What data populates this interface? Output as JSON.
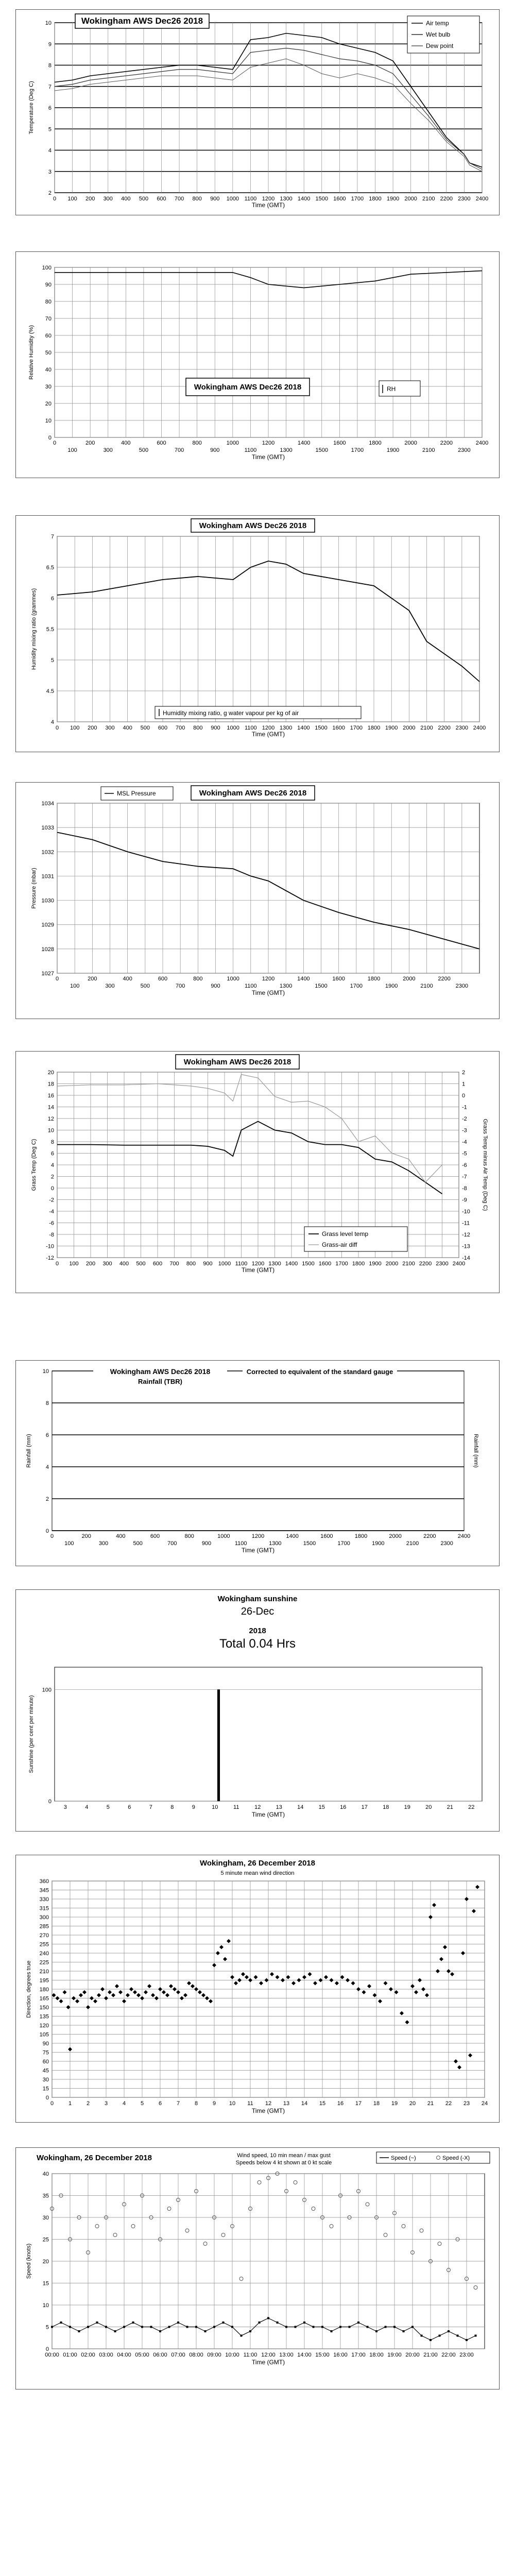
{
  "charts": {
    "temp": {
      "title": "Wokingham AWS  Dec26 2018",
      "xlabel": "Time (GMT)",
      "ylabel": "Temperature (Deg C)",
      "legend": [
        "Air temp",
        "Wet bulb",
        "Dew point"
      ]
    },
    "rh": {
      "title": "Wokingham AWS  Dec26 2018",
      "xlabel": "Time (GMT)",
      "ylabel": "Relative Humidity (%)",
      "legend": [
        "RH"
      ]
    },
    "hmr": {
      "title": "Wokingham AWS  Dec26 2018",
      "xlabel": "Time (GMT)",
      "ylabel": "Humidity mixing ratio (grammes)",
      "legend": [
        "Humidity mixing ratio, g water vapour per kg of air"
      ]
    },
    "pres": {
      "title": "Wokingham AWS  Dec26 2018",
      "xlabel": "Time (GMT)",
      "ylabel": "Pressure (mbar)",
      "legend": [
        "MSL Pressure"
      ]
    },
    "grass": {
      "title": "Wokingham AWS  Dec26 2018",
      "xlabel": "Time (GMT)",
      "ylabel": "Grass Temp (Deg C)",
      "y2label": "Grass Temp minus Air Temp (Deg C)",
      "legend": [
        "Grass level temp",
        "Grass-air diff"
      ]
    },
    "rain": {
      "title": "Wokingham AWS  Dec26 2018",
      "subtitle": "Rainfall (TBR)",
      "note": "Corrected to equivalent of the standard gauge",
      "xlabel": "Time (GMT)",
      "ylabel": "Rainfall  (mm)",
      "y2label": "Rainfall  (mm)"
    },
    "sun": {
      "title": "Wokingham sunshine",
      "date": "26-Dec",
      "year": "2018",
      "total": "Total 0.04 Hrs",
      "xlabel": "Time (GMT)",
      "ylabel": "Sunshine (per cent per minute)"
    },
    "wdir": {
      "title": "Wokingham,  26 December 2018",
      "subtitle": "5 minute mean wind direction",
      "xlabel": "Time (GMT)",
      "ylabel": "Direction, degrees true"
    },
    "wspd": {
      "title": "Wokingham,  26 December 2018",
      "note1": "Wind speed, 10 min mean / max gust",
      "note2": "Speeds below 4 kt shown at 0 kt scale",
      "xlabel": "Time (GMT)",
      "ylabel": "Speed (knots)",
      "legend": [
        "Speed (~)",
        "Speed (-X)"
      ]
    }
  },
  "chart_data": [
    {
      "id": "temp",
      "type": "line",
      "xlim": [
        0,
        2400
      ],
      "ylim": [
        2,
        10
      ],
      "x_ticks": [
        "0",
        "100",
        "200",
        "300",
        "400",
        "500",
        "600",
        "700",
        "800",
        "900",
        "1000",
        "1100",
        "1200",
        "1300",
        "1400",
        "1500",
        "1600",
        "1700",
        "1800",
        "1900",
        "2000",
        "2100",
        "2200",
        "2300",
        "2400"
      ],
      "y_ticks": [
        "2",
        "3",
        "4",
        "5",
        "6",
        "7",
        "8",
        "9",
        "10"
      ],
      "x": [
        0,
        100,
        200,
        300,
        400,
        500,
        600,
        700,
        800,
        900,
        1000,
        1100,
        1200,
        1300,
        1400,
        1500,
        1600,
        1700,
        1800,
        1900,
        2000,
        2100,
        2200,
        2300,
        2330,
        2400
      ],
      "series": [
        {
          "name": "Air temp",
          "values": [
            7.2,
            7.3,
            7.5,
            7.6,
            7.7,
            7.8,
            7.9,
            8.0,
            8.0,
            7.9,
            7.8,
            9.2,
            9.3,
            9.5,
            9.4,
            9.3,
            9.0,
            8.8,
            8.6,
            8.2,
            7.0,
            5.8,
            4.6,
            3.8,
            3.4,
            3.2
          ]
        },
        {
          "name": "Wet bulb",
          "values": [
            7.0,
            7.1,
            7.3,
            7.4,
            7.5,
            7.6,
            7.7,
            7.8,
            7.8,
            7.7,
            7.6,
            8.6,
            8.7,
            8.8,
            8.7,
            8.5,
            8.3,
            8.2,
            8.0,
            7.6,
            6.6,
            5.6,
            4.5,
            3.8,
            3.4,
            3.1
          ]
        },
        {
          "name": "Dew point",
          "values": [
            6.8,
            6.9,
            7.1,
            7.2,
            7.3,
            7.4,
            7.5,
            7.5,
            7.5,
            7.4,
            7.3,
            7.9,
            8.1,
            8.3,
            8.0,
            7.6,
            7.4,
            7.6,
            7.4,
            7.1,
            6.2,
            5.4,
            4.4,
            3.7,
            3.3,
            3.0
          ]
        }
      ]
    },
    {
      "id": "rh",
      "type": "line",
      "xlim": [
        0,
        2400
      ],
      "ylim": [
        0,
        100
      ],
      "x_ticks_top": [
        "0",
        "200",
        "400",
        "600",
        "800",
        "1000",
        "1200",
        "1400",
        "1600",
        "1800",
        "2000",
        "2200",
        "2400"
      ],
      "x_ticks_bottom": [
        "100",
        "300",
        "500",
        "700",
        "900",
        "1100",
        "1300",
        "1500",
        "1700",
        "1900",
        "2100",
        "2300"
      ],
      "y_ticks": [
        "0",
        "10",
        "20",
        "30",
        "40",
        "50",
        "60",
        "70",
        "80",
        "90",
        "100"
      ],
      "x": [
        0,
        200,
        400,
        600,
        800,
        1000,
        1100,
        1200,
        1300,
        1400,
        1500,
        1600,
        1700,
        1800,
        1900,
        2000,
        2200,
        2400
      ],
      "series": [
        {
          "name": "RH",
          "values": [
            97,
            97,
            97,
            97,
            97,
            97,
            94,
            90,
            89,
            88,
            89,
            90,
            91,
            92,
            94,
            96,
            97,
            98
          ]
        }
      ]
    },
    {
      "id": "hmr",
      "type": "line",
      "xlim": [
        0,
        2400
      ],
      "ylim": [
        4,
        7
      ],
      "x_ticks": [
        "0",
        "100",
        "200",
        "300",
        "400",
        "500",
        "600",
        "700",
        "800",
        "900",
        "1000",
        "1100",
        "1200",
        "1300",
        "1400",
        "1500",
        "1600",
        "1700",
        "1800",
        "1900",
        "2000",
        "2100",
        "2200",
        "2300",
        "2400"
      ],
      "y_ticks": [
        "4",
        "4.5",
        "5",
        "5.5",
        "6",
        "6.5",
        "7"
      ],
      "x": [
        0,
        200,
        400,
        600,
        800,
        1000,
        1100,
        1200,
        1300,
        1400,
        1600,
        1800,
        2000,
        2100,
        2200,
        2300,
        2400
      ],
      "series": [
        {
          "name": "Humidity mixing ratio, g water vapour per kg of air",
          "values": [
            6.05,
            6.1,
            6.2,
            6.3,
            6.35,
            6.3,
            6.5,
            6.6,
            6.55,
            6.4,
            6.3,
            6.2,
            5.8,
            5.3,
            5.1,
            4.9,
            4.65
          ]
        }
      ]
    },
    {
      "id": "pres",
      "type": "line",
      "xlim": [
        0,
        2400
      ],
      "ylim": [
        1027,
        1034
      ],
      "x_ticks_top": [
        "0",
        "200",
        "400",
        "600",
        "800",
        "1000",
        "1200",
        "1400",
        "1600",
        "1800",
        "2000",
        "2200"
      ],
      "x_ticks_bottom": [
        "100",
        "300",
        "500",
        "700",
        "900",
        "1100",
        "1300",
        "1500",
        "1700",
        "1900",
        "2100",
        "2300"
      ],
      "y_ticks": [
        "1027",
        "1028",
        "1029",
        "1030",
        "1031",
        "1032",
        "1033",
        "1034"
      ],
      "x": [
        0,
        200,
        400,
        600,
        800,
        1000,
        1100,
        1200,
        1300,
        1400,
        1600,
        1800,
        2000,
        2200,
        2400
      ],
      "series": [
        {
          "name": "MSL Pressure",
          "values": [
            1032.8,
            1032.5,
            1032.0,
            1031.6,
            1031.4,
            1031.3,
            1031.0,
            1030.8,
            1030.4,
            1030.0,
            1029.5,
            1029.1,
            1028.8,
            1028.4,
            1028.0
          ]
        }
      ]
    },
    {
      "id": "grass",
      "type": "line",
      "xlim": [
        0,
        2400
      ],
      "ylim": [
        -12,
        20
      ],
      "y2lim": [
        -14,
        2
      ],
      "x_ticks": [
        "0",
        "100",
        "200",
        "300",
        "400",
        "500",
        "600",
        "700",
        "800",
        "900",
        "1000",
        "1100",
        "1200",
        "1300",
        "1400",
        "1500",
        "1600",
        "1700",
        "1800",
        "1900",
        "2000",
        "2100",
        "2200",
        "2300",
        "2400"
      ],
      "y_ticks": [
        "-12",
        "-10",
        "-8",
        "-6",
        "-4",
        "-2",
        "0",
        "2",
        "4",
        "6",
        "8",
        "10",
        "12",
        "14",
        "16",
        "18",
        "20"
      ],
      "y2_ticks": [
        "-14",
        "-13",
        "-12",
        "-11",
        "-10",
        "-9",
        "-8",
        "-7",
        "-6",
        "-5",
        "-4",
        "-3",
        "-2",
        "-1",
        "0",
        "1",
        "2"
      ],
      "x": [
        0,
        200,
        400,
        600,
        800,
        900,
        1000,
        1050,
        1100,
        1200,
        1300,
        1400,
        1500,
        1600,
        1700,
        1800,
        1900,
        2000,
        2100,
        2200,
        2300
      ],
      "series": [
        {
          "name": "Grass level temp",
          "axis": "y",
          "values": [
            7.5,
            7.5,
            7.4,
            7.4,
            7.4,
            7.2,
            6.5,
            5.5,
            10.0,
            11.5,
            10.0,
            9.5,
            8.0,
            7.5,
            7.5,
            7.0,
            5.0,
            4.5,
            3.0,
            1.0,
            -1.0
          ]
        },
        {
          "name": "Grass-air diff",
          "axis": "y2",
          "values": [
            0.8,
            0.9,
            0.9,
            1.0,
            0.8,
            0.6,
            0.2,
            -0.5,
            1.8,
            1.5,
            -0.1,
            -0.6,
            -0.5,
            -1.0,
            -2.0,
            -4.0,
            -3.5,
            -5.0,
            -5.5,
            -7.5,
            -6.0
          ]
        }
      ]
    },
    {
      "id": "rain",
      "type": "line",
      "xlim": [
        0,
        2400
      ],
      "ylim": [
        0,
        10
      ],
      "x_ticks_top": [
        "0",
        "200",
        "400",
        "600",
        "800",
        "1000",
        "1200",
        "1400",
        "1600",
        "1800",
        "2000",
        "2200",
        "2400"
      ],
      "x_ticks_bottom": [
        "100",
        "300",
        "500",
        "700",
        "900",
        "1100",
        "1300",
        "1500",
        "1700",
        "1900",
        "2100",
        "2300"
      ],
      "y_ticks": [
        "0",
        "2",
        "4",
        "6",
        "8",
        "10"
      ],
      "x": [
        0,
        2400
      ],
      "series": [
        {
          "values": [
            0,
            0
          ]
        }
      ]
    },
    {
      "id": "sun",
      "type": "bar",
      "xlim": [
        2.5,
        22.5
      ],
      "ylim": [
        0,
        120
      ],
      "x_ticks": [
        "3",
        "4",
        "5",
        "6",
        "7",
        "8",
        "9",
        "10",
        "11",
        "12",
        "13",
        "14",
        "15",
        "16",
        "17",
        "18",
        "19",
        "20",
        "21",
        "22"
      ],
      "y_ticks": [
        "0",
        "100"
      ],
      "x": [
        10.15,
        10.2
      ],
      "values": [
        100,
        100
      ]
    },
    {
      "id": "wdir",
      "type": "scatter",
      "xlim": [
        0,
        24
      ],
      "ylim": [
        0,
        360
      ],
      "x_ticks": [
        "0",
        "1",
        "2",
        "3",
        "4",
        "5",
        "6",
        "7",
        "8",
        "9",
        "10",
        "11",
        "12",
        "13",
        "14",
        "15",
        "16",
        "17",
        "18",
        "19",
        "20",
        "21",
        "22",
        "23",
        "24"
      ],
      "y_ticks": [
        "0",
        "15",
        "30",
        "45",
        "60",
        "75",
        "90",
        "105",
        "120",
        "135",
        "150",
        "165",
        "180",
        "195",
        "210",
        "225",
        "240",
        "255",
        "270",
        "285",
        "300",
        "315",
        "330",
        "345",
        "360"
      ],
      "x": [
        0.1,
        0.3,
        0.5,
        0.7,
        0.9,
        1.0,
        1.2,
        1.4,
        1.6,
        1.8,
        2.0,
        2.2,
        2.4,
        2.6,
        2.8,
        3.0,
        3.2,
        3.4,
        3.6,
        3.8,
        4.0,
        4.2,
        4.4,
        4.6,
        4.8,
        5.0,
        5.2,
        5.4,
        5.6,
        5.8,
        6.0,
        6.2,
        6.4,
        6.6,
        6.8,
        7.0,
        7.2,
        7.4,
        7.6,
        7.8,
        8.0,
        8.2,
        8.4,
        8.6,
        8.8,
        9.0,
        9.2,
        9.4,
        9.6,
        9.8,
        10.0,
        10.2,
        10.4,
        10.6,
        10.8,
        11.0,
        11.3,
        11.6,
        11.9,
        12.2,
        12.5,
        12.8,
        13.1,
        13.4,
        13.7,
        14.0,
        14.3,
        14.6,
        14.9,
        15.2,
        15.5,
        15.8,
        16.1,
        16.4,
        16.7,
        17.0,
        17.3,
        17.6,
        17.9,
        18.2,
        18.5,
        18.8,
        19.1,
        19.4,
        19.7,
        20.0,
        20.2,
        20.4,
        20.6,
        20.8,
        21.0,
        21.2,
        21.4,
        21.6,
        21.8,
        22.0,
        22.2,
        22.4,
        22.6,
        22.8,
        23.0,
        23.2,
        23.4,
        23.6
      ],
      "y": [
        170,
        165,
        160,
        175,
        150,
        80,
        165,
        160,
        170,
        175,
        150,
        165,
        160,
        170,
        180,
        165,
        175,
        170,
        185,
        175,
        160,
        170,
        180,
        175,
        170,
        165,
        175,
        185,
        170,
        165,
        180,
        175,
        170,
        185,
        180,
        175,
        165,
        170,
        190,
        185,
        180,
        175,
        170,
        165,
        160,
        220,
        240,
        250,
        230,
        260,
        200,
        190,
        195,
        205,
        200,
        195,
        200,
        190,
        195,
        205,
        200,
        195,
        200,
        190,
        195,
        200,
        205,
        190,
        195,
        200,
        195,
        190,
        200,
        195,
        190,
        180,
        175,
        185,
        170,
        160,
        190,
        180,
        175,
        140,
        125,
        185,
        175,
        195,
        180,
        170,
        300,
        320,
        210,
        230,
        250,
        210,
        205,
        60,
        50,
        240,
        330,
        70,
        310,
        350
      ],
      "marker": "diamond"
    },
    {
      "id": "wspd",
      "type": "scatter",
      "xlim": [
        0,
        24
      ],
      "ylim": [
        0,
        40
      ],
      "x_ticks": [
        "00:00",
        "01:00",
        "02:00",
        "03:00",
        "04:00",
        "05:00",
        "06:00",
        "07:00",
        "08:00",
        "09:00",
        "10:00",
        "11:00",
        "12:00",
        "13:00",
        "14:00",
        "15:00",
        "16:00",
        "17:00",
        "18:00",
        "19:00",
        "20:00",
        "21:00",
        "22:00",
        "23:00"
      ],
      "y_ticks": [
        "0",
        "5",
        "10",
        "15",
        "20",
        "25",
        "30",
        "35",
        "40"
      ],
      "x": [
        0,
        0.5,
        1,
        1.5,
        2,
        2.5,
        3,
        3.5,
        4,
        4.5,
        5,
        5.5,
        6,
        6.5,
        7,
        7.5,
        8,
        8.5,
        9,
        9.5,
        10,
        10.5,
        11,
        11.5,
        12,
        12.5,
        13,
        13.5,
        14,
        14.5,
        15,
        15.5,
        16,
        16.5,
        17,
        17.5,
        18,
        18.5,
        19,
        19.5,
        20,
        20.5,
        21,
        21.5,
        22,
        22.5,
        23,
        23.5
      ],
      "series": [
        {
          "name": "Speed (~)",
          "values": [
            5,
            6,
            5,
            4,
            5,
            6,
            5,
            4,
            5,
            6,
            5,
            5,
            4,
            5,
            6,
            5,
            5,
            4,
            5,
            6,
            5,
            3,
            4,
            6,
            7,
            6,
            5,
            5,
            6,
            5,
            5,
            4,
            5,
            5,
            6,
            5,
            4,
            5,
            5,
            4,
            5,
            3,
            2,
            3,
            4,
            3,
            2,
            3
          ]
        },
        {
          "name": "Speed (-X)",
          "values": [
            32,
            35,
            25,
            30,
            22,
            28,
            30,
            26,
            33,
            28,
            35,
            30,
            25,
            32,
            34,
            27,
            36,
            24,
            30,
            26,
            28,
            16,
            32,
            38,
            39,
            40,
            36,
            38,
            34,
            32,
            30,
            28,
            35,
            30,
            36,
            33,
            30,
            26,
            31,
            28,
            22,
            27,
            20,
            24,
            18,
            25,
            16,
            14
          ]
        }
      ]
    }
  ]
}
